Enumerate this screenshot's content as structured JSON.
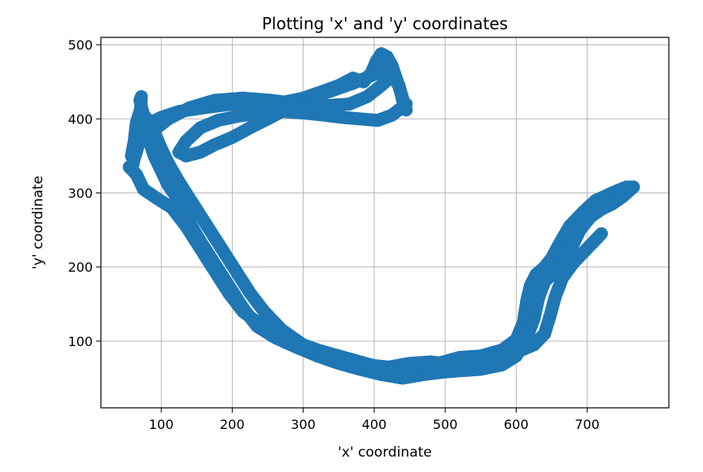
{
  "chart_data": {
    "type": "scatter",
    "title": "Plotting 'x' and 'y' coordinates",
    "xlabel": "'x' coordinate",
    "ylabel": "'y' coordinate",
    "xlim": [
      15,
      815
    ],
    "ylim": [
      10,
      510
    ],
    "xticks": [
      100,
      200,
      300,
      400,
      500,
      600,
      700
    ],
    "yticks": [
      100,
      200,
      300,
      400,
      500
    ],
    "grid": true,
    "marker_color": "#1f77b4",
    "series": [
      {
        "passes": [
          [
            [
              445,
              412
            ],
            [
              440,
              428
            ],
            [
              432,
              452
            ],
            [
              425,
              472
            ],
            [
              418,
              484
            ],
            [
              410,
              488
            ],
            [
              403,
              478
            ],
            [
              396,
              462
            ],
            [
              385,
              450
            ],
            [
              370,
              455
            ],
            [
              350,
              445
            ],
            [
              330,
              438
            ],
            [
              300,
              428
            ],
            [
              270,
              422
            ],
            [
              240,
              420
            ],
            [
              200,
              420
            ],
            [
              160,
              415
            ],
            [
              125,
              410
            ],
            [
              100,
              402
            ],
            [
              85,
              395
            ],
            [
              75,
              405
            ],
            [
              70,
              425
            ],
            [
              72,
              430
            ],
            [
              70,
              395
            ],
            [
              65,
              360
            ],
            [
              60,
              338
            ],
            [
              55,
              335
            ],
            [
              65,
              325
            ],
            [
              75,
              305
            ],
            [
              95,
              292
            ],
            [
              115,
              280
            ],
            [
              135,
              255
            ],
            [
              155,
              225
            ],
            [
              175,
              195
            ],
            [
              195,
              165
            ],
            [
              215,
              140
            ],
            [
              240,
              122
            ],
            [
              265,
              110
            ],
            [
              290,
              98
            ],
            [
              320,
              88
            ],
            [
              350,
              80
            ],
            [
              380,
              72
            ],
            [
              410,
              64
            ],
            [
              440,
              60
            ],
            [
              465,
              62
            ],
            [
              490,
              70
            ],
            [
              520,
              78
            ],
            [
              550,
              80
            ],
            [
              580,
              88
            ],
            [
              600,
              102
            ],
            [
              610,
              125
            ],
            [
              615,
              155
            ],
            [
              620,
              175
            ],
            [
              628,
              190
            ],
            [
              640,
              200
            ],
            [
              650,
              212
            ],
            [
              660,
              230
            ],
            [
              675,
              255
            ],
            [
              695,
              275
            ],
            [
              712,
              290
            ],
            [
              735,
              300
            ],
            [
              755,
              308
            ],
            [
              765,
              308
            ]
          ],
          [
            [
              765,
              308
            ],
            [
              750,
              295
            ],
            [
              735,
              285
            ],
            [
              720,
              278
            ],
            [
              705,
              268
            ],
            [
              690,
              250
            ],
            [
              680,
              230
            ],
            [
              668,
              210
            ],
            [
              655,
              195
            ],
            [
              640,
              180
            ],
            [
              632,
              160
            ],
            [
              625,
              130
            ],
            [
              615,
              105
            ],
            [
              600,
              80
            ],
            [
              580,
              68
            ],
            [
              550,
              62
            ],
            [
              520,
              60
            ],
            [
              495,
              58
            ],
            [
              470,
              55
            ],
            [
              440,
              50
            ],
            [
              410,
              55
            ],
            [
              380,
              62
            ],
            [
              350,
              70
            ],
            [
              320,
              80
            ],
            [
              290,
              92
            ],
            [
              260,
              105
            ],
            [
              235,
              120
            ],
            [
              215,
              145
            ],
            [
              195,
              175
            ],
            [
              175,
              205
            ],
            [
              155,
              235
            ],
            [
              140,
              260
            ],
            [
              125,
              290
            ],
            [
              110,
              310
            ],
            [
              100,
              330
            ],
            [
              90,
              350
            ],
            [
              80,
              380
            ],
            [
              75,
              395
            ]
          ],
          [
            [
              720,
              245
            ],
            [
              700,
              225
            ],
            [
              680,
              205
            ],
            [
              665,
              185
            ],
            [
              655,
              160
            ],
            [
              648,
              135
            ],
            [
              640,
              110
            ],
            [
              625,
              95
            ],
            [
              600,
              85
            ],
            [
              570,
              78
            ],
            [
              540,
              72
            ],
            [
              510,
              68
            ],
            [
              480,
              72
            ],
            [
              450,
              70
            ],
            [
              420,
              65
            ],
            [
              390,
              68
            ],
            [
              360,
              75
            ],
            [
              330,
              85
            ],
            [
              300,
              95
            ],
            [
              270,
              115
            ],
            [
              245,
              140
            ],
            [
              225,
              165
            ],
            [
              205,
              195
            ],
            [
              185,
              225
            ],
            [
              165,
              255
            ],
            [
              145,
              285
            ],
            [
              125,
              315
            ],
            [
              110,
              340
            ],
            [
              100,
              360
            ],
            [
              92,
              378
            ],
            [
              88,
              392
            ]
          ],
          [
            [
              445,
              420
            ],
            [
              425,
              405
            ],
            [
              405,
              398
            ],
            [
              380,
              400
            ],
            [
              355,
              402
            ],
            [
              330,
              405
            ],
            [
              300,
              408
            ],
            [
              270,
              410
            ],
            [
              240,
              408
            ],
            [
              210,
              404
            ],
            [
              180,
              398
            ],
            [
              155,
              388
            ],
            [
              135,
              370
            ],
            [
              125,
              355
            ],
            [
              135,
              350
            ],
            [
              155,
              355
            ],
            [
              175,
              365
            ],
            [
              200,
              375
            ],
            [
              225,
              388
            ],
            [
              250,
              400
            ],
            [
              280,
              415
            ],
            [
              310,
              428
            ],
            [
              340,
              438
            ],
            [
              370,
              448
            ],
            [
              400,
              460
            ],
            [
              420,
              470
            ]
          ],
          [
            [
              90,
              385
            ],
            [
              110,
              400
            ],
            [
              140,
              415
            ],
            [
              175,
              425
            ],
            [
              215,
              428
            ],
            [
              255,
              425
            ],
            [
              295,
              420
            ],
            [
              335,
              418
            ],
            [
              365,
              420
            ],
            [
              390,
              430
            ],
            [
              410,
              445
            ],
            [
              425,
              458
            ],
            [
              435,
              445
            ],
            [
              440,
              425
            ]
          ],
          [
            [
              60,
              340
            ],
            [
              68,
              365
            ],
            [
              72,
              390
            ],
            [
              70,
              410
            ],
            [
              65,
              395
            ],
            [
              62,
              370
            ],
            [
              58,
              350
            ]
          ]
        ]
      }
    ]
  }
}
